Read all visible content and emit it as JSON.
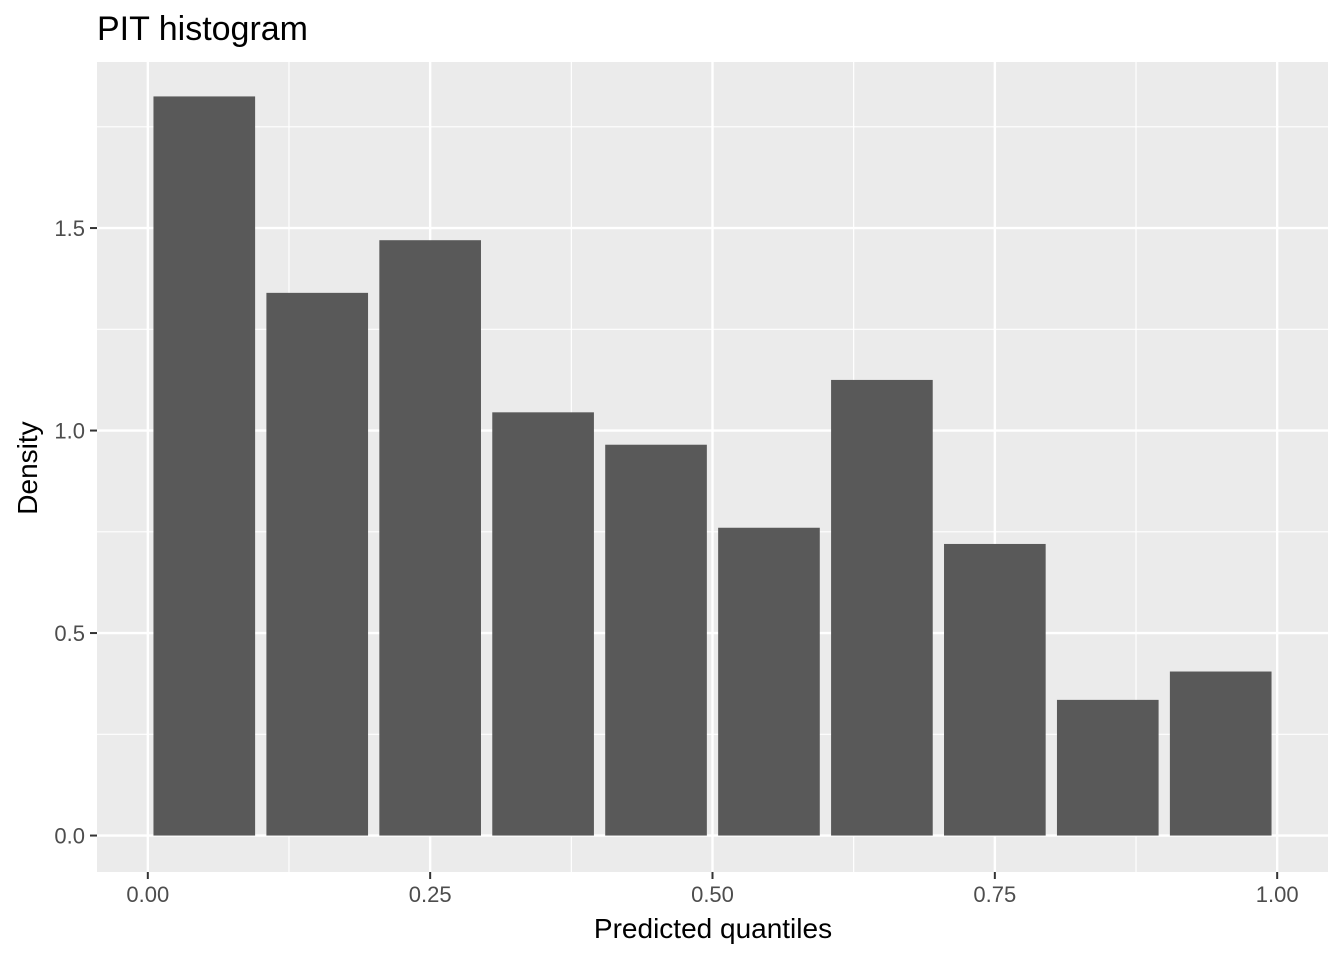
{
  "chart_data": {
    "type": "bar",
    "title": "PIT histogram",
    "xlabel": "Predicted quantiles",
    "ylabel": "Density",
    "bin_width": 0.1,
    "bins": [
      {
        "x": 0.05,
        "value": 1.825
      },
      {
        "x": 0.15,
        "value": 1.34
      },
      {
        "x": 0.25,
        "value": 1.47
      },
      {
        "x": 0.35,
        "value": 1.045
      },
      {
        "x": 0.45,
        "value": 0.965
      },
      {
        "x": 0.55,
        "value": 0.76
      },
      {
        "x": 0.65,
        "value": 1.125
      },
      {
        "x": 0.75,
        "value": 0.72
      },
      {
        "x": 0.85,
        "value": 0.335
      },
      {
        "x": 0.95,
        "value": 0.405
      }
    ],
    "xlim": [
      -0.045,
      1.045
    ],
    "ylim": [
      -0.09,
      1.91
    ],
    "x_ticks": [
      {
        "value": 0.0,
        "label": "0.00"
      },
      {
        "value": 0.25,
        "label": "0.25"
      },
      {
        "value": 0.5,
        "label": "0.50"
      },
      {
        "value": 0.75,
        "label": "0.75"
      },
      {
        "value": 1.0,
        "label": "1.00"
      }
    ],
    "y_ticks": [
      {
        "value": 0.0,
        "label": "0.0"
      },
      {
        "value": 0.5,
        "label": "0.5"
      },
      {
        "value": 1.0,
        "label": "1.0"
      },
      {
        "value": 1.5,
        "label": "1.5"
      }
    ],
    "x_minor": [
      0.125,
      0.375,
      0.625,
      0.875
    ],
    "y_minor": [
      0.25,
      0.75,
      1.25,
      1.75
    ],
    "grid": true,
    "legend": "none",
    "colors": {
      "bar": "#595959",
      "panel": "#ebebeb",
      "grid": "#ffffff",
      "tick": "#333333"
    }
  }
}
